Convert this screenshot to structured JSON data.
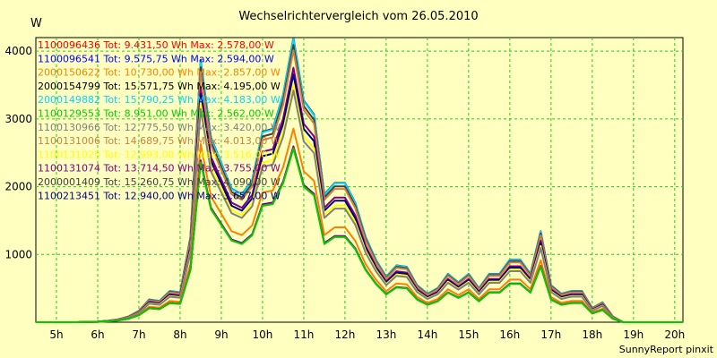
{
  "chart_data": {
    "type": "line",
    "title": "Wechselrichtervergleich vom 26.05.2010",
    "y_unit": "W",
    "footer": "SunnyReport pinxit",
    "xlim": [
      4.5,
      20.2
    ],
    "ylim": [
      0,
      4200
    ],
    "x_ticks": [
      {
        "value": 5,
        "label": "5h"
      },
      {
        "value": 6,
        "label": "6h"
      },
      {
        "value": 7,
        "label": "7h"
      },
      {
        "value": 8,
        "label": "8h"
      },
      {
        "value": 9,
        "label": "9h"
      },
      {
        "value": 10,
        "label": "10h"
      },
      {
        "value": 11,
        "label": "11h"
      },
      {
        "value": 12,
        "label": "12h"
      },
      {
        "value": 13,
        "label": "13h"
      },
      {
        "value": 14,
        "label": "14h"
      },
      {
        "value": 15,
        "label": "15h"
      },
      {
        "value": 16,
        "label": "16h"
      },
      {
        "value": 17,
        "label": "17h"
      },
      {
        "value": 18,
        "label": "18h"
      },
      {
        "value": 19,
        "label": "19h"
      },
      {
        "value": 20,
        "label": "20h"
      }
    ],
    "y_ticks": [
      {
        "value": 1000,
        "label": "1000"
      },
      {
        "value": 2000,
        "label": "2000"
      },
      {
        "value": 3000,
        "label": "3000"
      },
      {
        "value": 4000,
        "label": "4000"
      }
    ],
    "grid": true,
    "legend_position": "top-left",
    "x": [
      4.5,
      5,
      5.5,
      6,
      6.25,
      6.5,
      6.75,
      7,
      7.25,
      7.5,
      7.75,
      8,
      8.25,
      8.5,
      8.75,
      9,
      9.25,
      9.5,
      9.75,
      10,
      10.25,
      10.5,
      10.75,
      11,
      11.25,
      11.5,
      11.75,
      12,
      12.25,
      12.5,
      12.75,
      13,
      13.25,
      13.5,
      13.75,
      14,
      14.25,
      14.5,
      14.75,
      15,
      15.25,
      15.5,
      15.75,
      16,
      16.25,
      16.5,
      16.75,
      17,
      17.25,
      17.5,
      17.75,
      18,
      18.25,
      18.5,
      18.75,
      19,
      19.5,
      20,
      20.2
    ],
    "base_profile": [
      0,
      0,
      0,
      0.002,
      0.005,
      0.01,
      0.02,
      0.04,
      0.08,
      0.075,
      0.11,
      0.105,
      0.3,
      0.92,
      0.65,
      0.56,
      0.47,
      0.45,
      0.5,
      0.67,
      0.68,
      0.8,
      1.0,
      0.78,
      0.73,
      0.45,
      0.49,
      0.49,
      0.42,
      0.3,
      0.22,
      0.16,
      0.2,
      0.195,
      0.13,
      0.1,
      0.12,
      0.17,
      0.14,
      0.17,
      0.12,
      0.17,
      0.17,
      0.22,
      0.22,
      0.17,
      0.32,
      0.13,
      0.1,
      0.11,
      0.11,
      0.05,
      0.07,
      0.02,
      0,
      0,
      0,
      0,
      0
    ],
    "series": [
      {
        "name": "1100096436 Tot: 9.431,50 Wh Max: 2.578,00 W",
        "color": "#ff0000",
        "max": 2578
      },
      {
        "name": "1100096541 Tot: 9.575,75 Wh Max: 2.594,00 W",
        "color": "#0000ff",
        "max": 2594
      },
      {
        "name": "2000150622 Tot: 10.730,00 Wh Max: 2.857,00 W",
        "color": "#ff8000",
        "max": 2857
      },
      {
        "name": "2000154799 Tot: 15.571,75 Wh Max: 4.195,00 W",
        "color": "#000000",
        "max": 4195
      },
      {
        "name": "2000149882 Tot: 15.790,25 Wh Max: 4.183,00 W",
        "color": "#00d8ff",
        "max": 4183
      },
      {
        "name": "1100129553 Tot: 8.951,00 Wh Max: 2.562,00 W",
        "color": "#00cc00",
        "max": 2562
      },
      {
        "name": "1100130966 Tot: 12.775,50 Wh Max: 3.420,00 W",
        "color": "#808080",
        "max": 3420
      },
      {
        "name": "1100131006 Tot: 14.689,75 Wh Max: 4.013,00 W",
        "color": "#d08040",
        "max": 4013
      },
      {
        "name": "1100131025 Tot: 12.993,00 Wh Max: 3.516,00 W",
        "color": "#ffff00",
        "max": 3516
      },
      {
        "name": "1100131074 Tot: 13.714,50 Wh Max: 3.755,00 W",
        "color": "#800080",
        "max": 3755
      },
      {
        "name": "2000001409 Tot: 15.260,75 Wh Max: 4.090,00 W",
        "color": "#404040",
        "max": 4090
      },
      {
        "name": "1100213451 Tot: 12.940,00 Wh Max: 3.657,00 W",
        "color": "#000080",
        "max": 3657
      }
    ]
  }
}
